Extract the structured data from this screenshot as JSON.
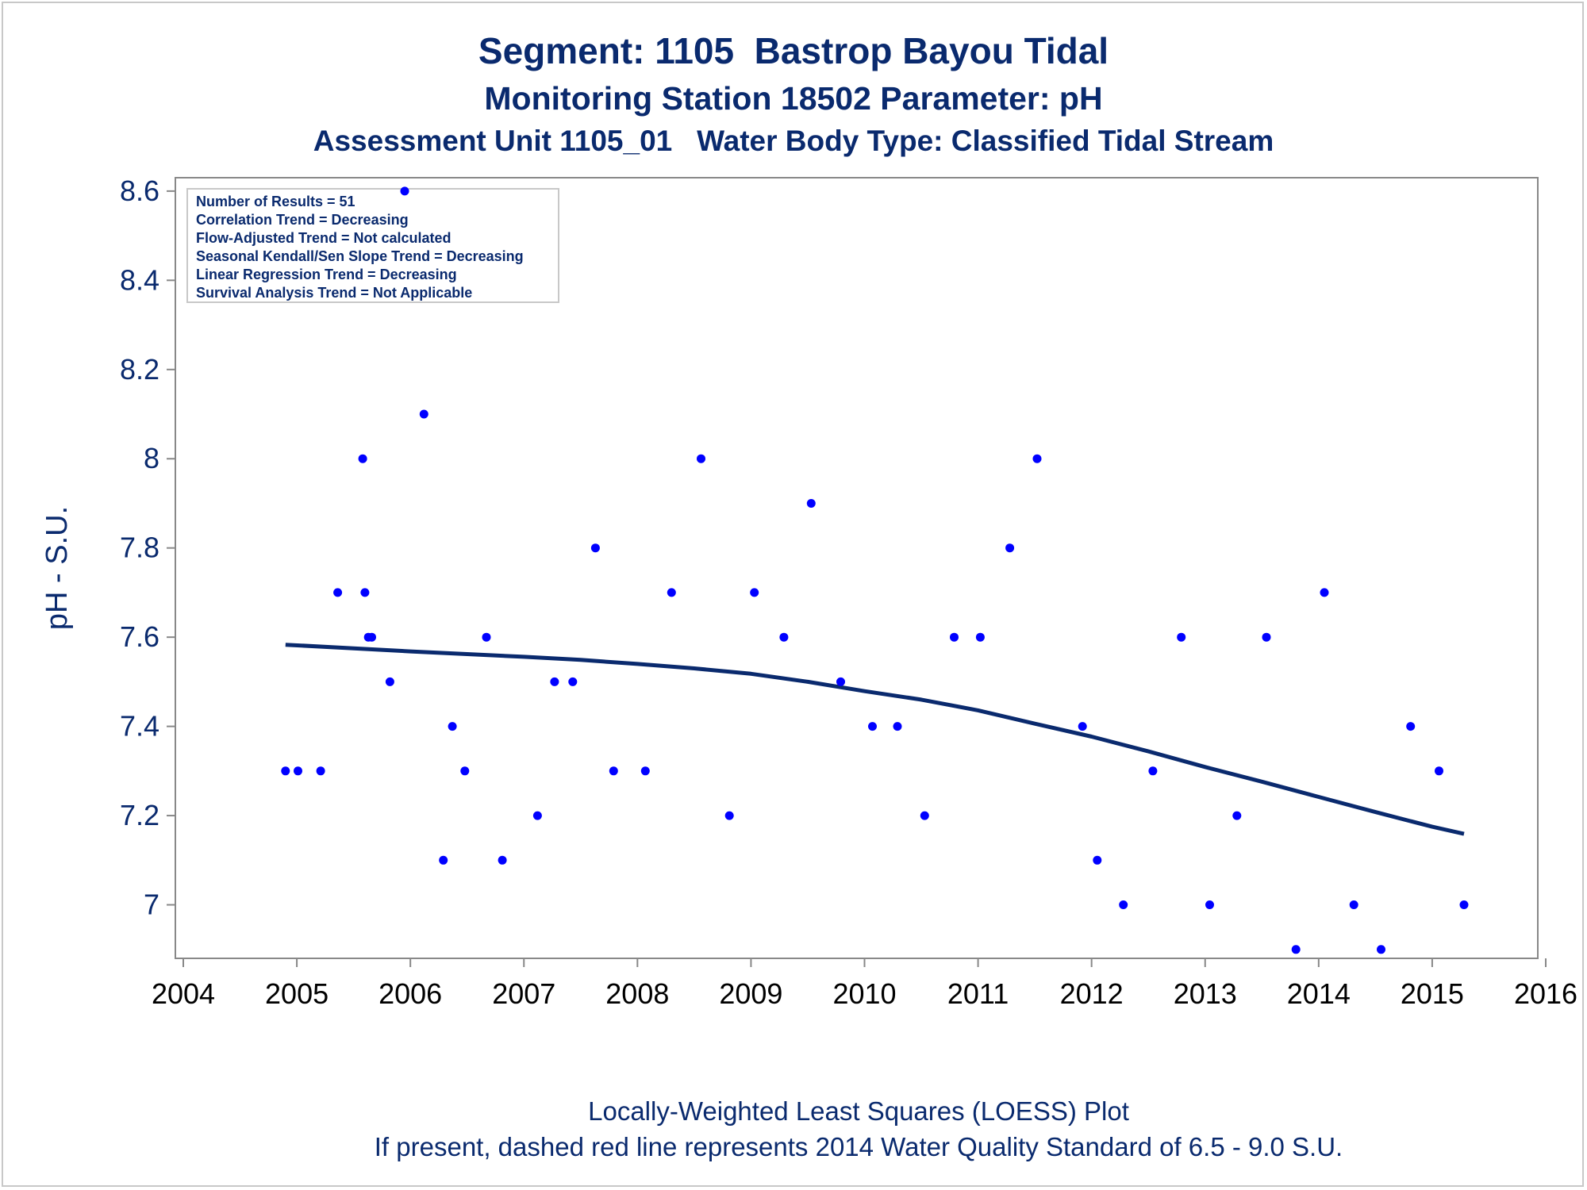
{
  "titles": {
    "line1": "Segment: 1105  Bastrop Bayou Tidal",
    "line2": "Monitoring Station 18502 Parameter: pH",
    "line3": "Assessment Unit 1105_01   Water Body Type: Classified Tidal Stream"
  },
  "footnotes": {
    "line1": "Locally-Weighted Least Squares (LOESS) Plot",
    "line2": "If present, dashed red line represents 2014 Water Quality Standard of 6.5 - 9.0 S.U."
  },
  "stats_box": [
    "Number of Results = 51",
    "Correlation Trend = Decreasing",
    "Flow-Adjusted Trend = Not calculated",
    "Seasonal Kendall/Sen Slope Trend = Decreasing",
    "Linear Regression Trend = Decreasing",
    "Survival Analysis Trend = Not Applicable"
  ],
  "colors": {
    "points": "#0000ff",
    "loess": "#0a2a6e",
    "text": "#0a2a6e",
    "axis": "#888888"
  },
  "chart_data": {
    "type": "scatter",
    "title": "Segment: 1105  Bastrop Bayou Tidal",
    "xlabel": "",
    "ylabel": "pH - S.U.",
    "xlim": [
      2004,
      2016
    ],
    "ylim": [
      6.88,
      8.63
    ],
    "x_ticks": [
      2004,
      2005,
      2006,
      2007,
      2008,
      2009,
      2010,
      2011,
      2012,
      2013,
      2014,
      2015,
      2016
    ],
    "y_ticks": [
      7,
      7.2,
      7.4,
      7.6,
      7.8,
      8,
      8.2,
      8.4,
      8.6
    ],
    "grid": false,
    "legend": "top-left",
    "series": [
      {
        "kind": "points",
        "x": [
          2004.9,
          2005.01,
          2005.21,
          2005.36,
          2005.58,
          2005.6,
          2005.63,
          2005.66,
          2005.82,
          2005.95,
          2006.12,
          2006.29,
          2006.37,
          2006.48,
          2006.67,
          2006.81,
          2007.12,
          2007.27,
          2007.43,
          2007.63,
          2007.79,
          2008.07,
          2008.3,
          2008.56,
          2008.81,
          2009.03,
          2009.29,
          2009.53,
          2009.79,
          2010.07,
          2010.29,
          2010.53,
          2010.79,
          2011.02,
          2011.28,
          2011.52,
          2011.92,
          2012.05,
          2012.28,
          2012.54,
          2012.79,
          2013.04,
          2013.28,
          2013.54,
          2013.8,
          2014.05,
          2014.31,
          2014.55,
          2014.81,
          2015.06,
          2015.28
        ],
        "y": [
          7.3,
          7.3,
          7.3,
          7.7,
          8.0,
          7.7,
          7.6,
          7.6,
          7.5,
          8.6,
          8.1,
          7.1,
          7.4,
          7.3,
          7.6,
          7.1,
          7.2,
          7.5,
          7.5,
          7.8,
          7.3,
          7.3,
          7.7,
          8.0,
          7.2,
          7.7,
          7.6,
          7.9,
          7.5,
          7.4,
          7.4,
          7.2,
          7.6,
          7.6,
          7.8,
          8.0,
          7.4,
          7.1,
          7.0,
          7.3,
          7.6,
          7.0,
          7.2,
          7.6,
          6.9,
          7.7,
          7.0,
          6.9,
          7.4,
          7.3,
          7.0
        ]
      },
      {
        "kind": "loess",
        "x": [
          2004.9,
          2005.5,
          2006.0,
          2006.5,
          2007.0,
          2007.5,
          2008.0,
          2008.5,
          2009.0,
          2009.5,
          2010.0,
          2010.5,
          2011.0,
          2011.5,
          2012.0,
          2012.5,
          2013.0,
          2013.5,
          2014.0,
          2014.5,
          2015.0,
          2015.28
        ],
        "y": [
          7.583,
          7.575,
          7.568,
          7.562,
          7.556,
          7.549,
          7.54,
          7.53,
          7.518,
          7.5,
          7.479,
          7.46,
          7.436,
          7.406,
          7.377,
          7.344,
          7.309,
          7.276,
          7.242,
          7.208,
          7.175,
          7.159
        ]
      }
    ]
  }
}
